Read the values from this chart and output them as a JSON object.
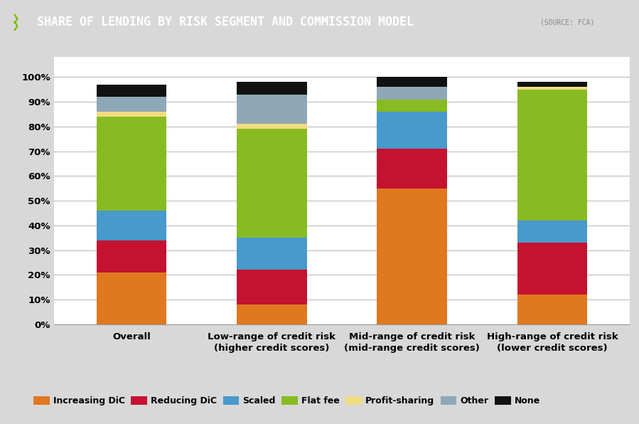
{
  "categories": [
    "Overall",
    "Low-range of credit risk\n(higher credit scores)",
    "Mid-range of credit risk\n(mid-range credit scores)",
    "High-range of credit risk\n(lower credit scores)"
  ],
  "segments": [
    "Increasing DiC",
    "Reducing DiC",
    "Scaled",
    "Flat fee",
    "Profit-sharing",
    "Other",
    "None"
  ],
  "colors": [
    "#E07820",
    "#C41230",
    "#4899CC",
    "#88BB22",
    "#F0DC80",
    "#8EA8B8",
    "#111111"
  ],
  "values": [
    [
      21,
      13,
      12,
      38,
      2,
      6,
      5
    ],
    [
      8,
      14,
      13,
      44,
      2,
      12,
      5
    ],
    [
      55,
      16,
      15,
      5,
      0,
      5,
      4
    ],
    [
      12,
      21,
      9,
      53,
      1,
      0,
      2
    ]
  ],
  "title": "SHARE OF LENDING BY RISK SEGMENT AND COMMISSION MODEL",
  "source": "(SOURCE: FCA)",
  "ylabel_ticks": [
    "0%",
    "10%",
    "20%",
    "30%",
    "40%",
    "50%",
    "60%",
    "70%",
    "80%",
    "90%",
    "100%"
  ],
  "title_bg": "#0A0A0A",
  "outer_bg": "#D8D8D8",
  "inner_bg": "#EAEAEA",
  "plot_bg": "#FFFFFF",
  "title_color": "#FFFFFF",
  "bar_width": 0.5,
  "title_fontsize": 12,
  "source_fontsize": 7,
  "tick_fontsize": 9.5,
  "legend_fontsize": 9
}
